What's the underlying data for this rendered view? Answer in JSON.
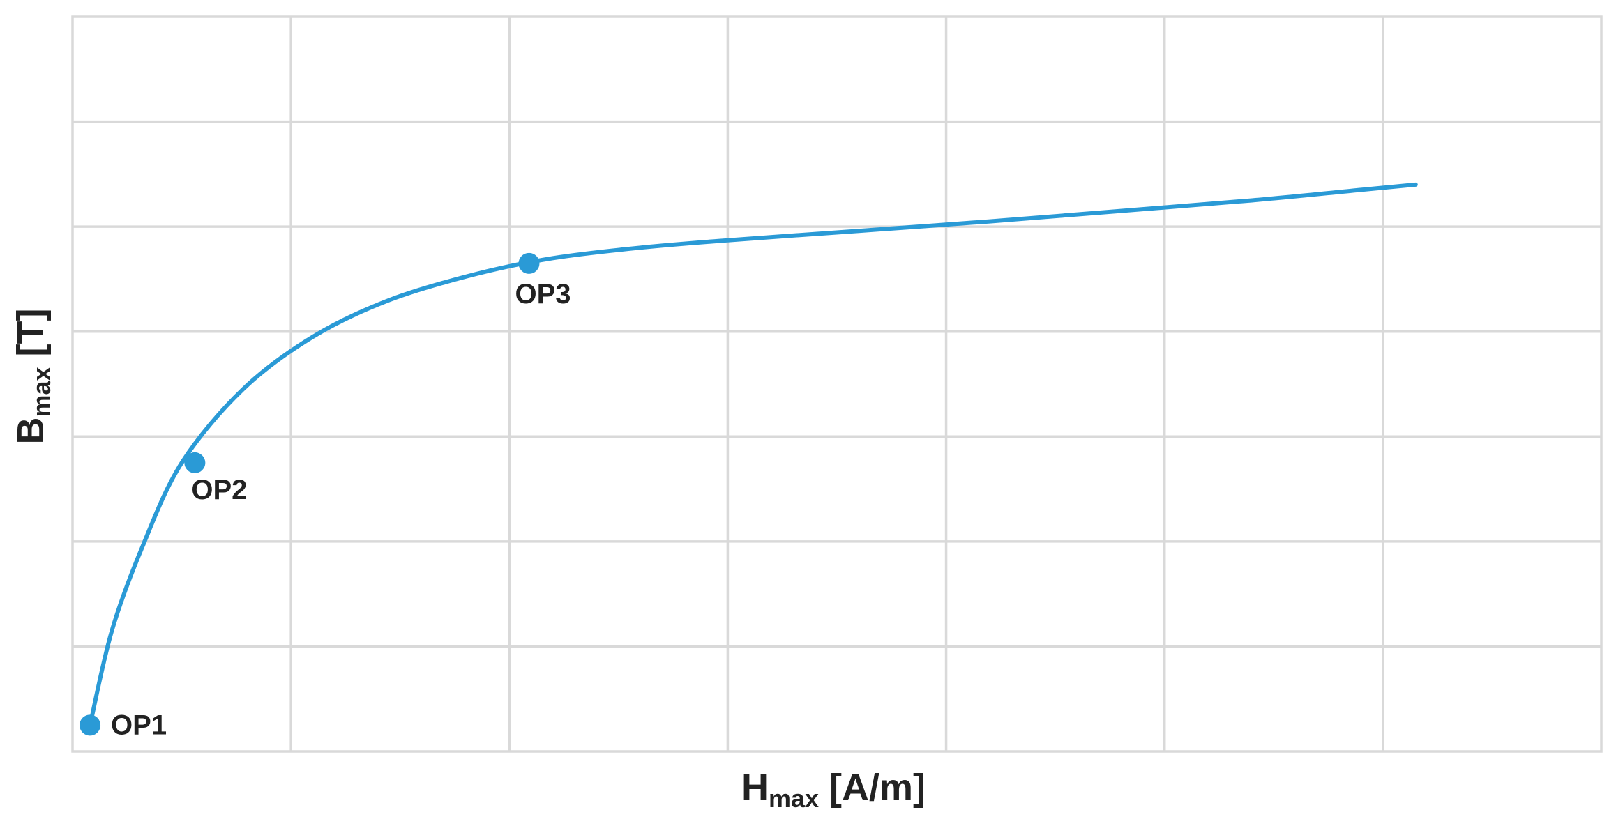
{
  "chart_data": {
    "type": "line",
    "title": "",
    "xlabel": {
      "main": "H",
      "sub": "max",
      "unit": " [A/m]"
    },
    "ylabel": {
      "main": "B",
      "sub": "max",
      "unit": " [T]"
    },
    "xlim": [
      0,
      7
    ],
    "ylim": [
      0,
      7
    ],
    "grid": true,
    "legend": "none",
    "color": "#2a9ad6",
    "series": [
      {
        "x": [
          0.08,
          0.18,
          0.32,
          0.5,
          0.78,
          1.1,
          1.45,
          1.85,
          2.2,
          2.6,
          3.0,
          3.6,
          4.2,
          4.8,
          5.4,
          5.9,
          6.15
        ],
        "y": [
          0.25,
          1.15,
          1.95,
          2.75,
          3.45,
          3.95,
          4.3,
          4.55,
          4.7,
          4.8,
          4.87,
          4.96,
          5.05,
          5.15,
          5.25,
          5.35,
          5.4
        ]
      }
    ],
    "points": [
      {
        "label": "OP1",
        "x": 0.08,
        "y": 0.25
      },
      {
        "label": "OP2",
        "x": 0.56,
        "y": 2.75
      },
      {
        "label": "OP3",
        "x": 2.09,
        "y": 4.65
      }
    ]
  }
}
